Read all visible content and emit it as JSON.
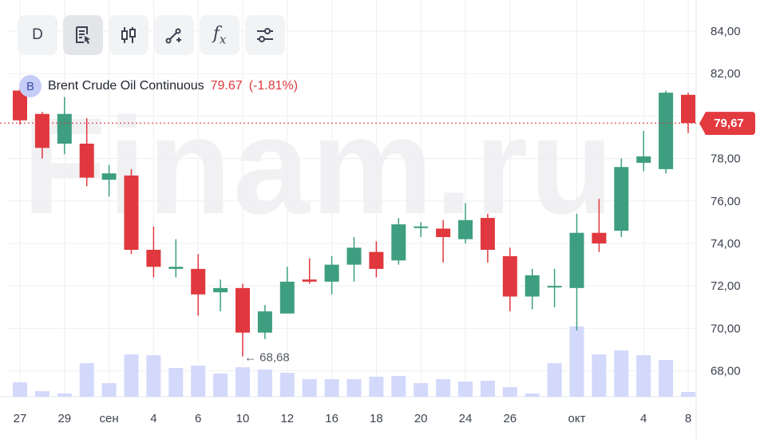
{
  "toolbar": {
    "interval_label": "D",
    "buttons": [
      {
        "name": "interval-button",
        "icon": "interval-text",
        "active": false
      },
      {
        "name": "indicators-button",
        "icon": "document-cursor-icon",
        "active": true
      },
      {
        "name": "chart-type-button",
        "icon": "candlestick-icon",
        "active": false
      },
      {
        "name": "drawing-tools-button",
        "icon": "line-tool-icon",
        "active": false
      },
      {
        "name": "functions-button",
        "icon": "fx-icon",
        "active": false
      },
      {
        "name": "settings-button",
        "icon": "sliders-icon",
        "active": false
      }
    ],
    "fx_label": "f",
    "fx_sub": "x"
  },
  "legend": {
    "badge": "B",
    "symbol": "Brent Crude Oil Continuous",
    "price": "79.67",
    "change": "(-1.81%)"
  },
  "watermark": "Finam.ru",
  "current_price_label": "79,67",
  "low_marker_label": "68,68",
  "colors": {
    "up": "#3d9e80",
    "down": "#e0383e",
    "volume": "#d3d9fb",
    "grid": "#eeeff2",
    "price_line": "#e0383e"
  },
  "chart_data": {
    "type": "candlestick",
    "title": "Brent Crude Oil Continuous",
    "ylim": [
      67.0,
      85.0
    ],
    "yticks": [
      "84,00",
      "82,00",
      "80,00",
      "78,00",
      "76,00",
      "74,00",
      "72,00",
      "70,00",
      "68,00"
    ],
    "ytick_values": [
      84,
      82,
      80,
      78,
      76,
      74,
      72,
      70,
      68
    ],
    "xticks": [
      {
        "label": "27",
        "index": 0
      },
      {
        "label": "29",
        "index": 2
      },
      {
        "label": "сен",
        "index": 4
      },
      {
        "label": "4",
        "index": 6
      },
      {
        "label": "6",
        "index": 8
      },
      {
        "label": "10",
        "index": 10
      },
      {
        "label": "12",
        "index": 12
      },
      {
        "label": "16",
        "index": 14
      },
      {
        "label": "18",
        "index": 16
      },
      {
        "label": "20",
        "index": 18
      },
      {
        "label": "24",
        "index": 20
      },
      {
        "label": "26",
        "index": 22
      },
      {
        "label": "окт",
        "index": 25
      },
      {
        "label": "4",
        "index": 28
      },
      {
        "label": "8",
        "index": 30
      }
    ],
    "candles": [
      {
        "o": 81.2,
        "h": 81.3,
        "l": 79.6,
        "c": 79.8
      },
      {
        "o": 80.1,
        "h": 80.2,
        "l": 78.0,
        "c": 78.5
      },
      {
        "o": 78.7,
        "h": 80.9,
        "l": 78.2,
        "c": 80.1
      },
      {
        "o": 78.7,
        "h": 79.9,
        "l": 76.7,
        "c": 77.1
      },
      {
        "o": 77.0,
        "h": 77.7,
        "l": 76.2,
        "c": 77.3
      },
      {
        "o": 77.2,
        "h": 77.5,
        "l": 73.5,
        "c": 73.7
      },
      {
        "o": 73.7,
        "h": 74.8,
        "l": 72.4,
        "c": 72.9
      },
      {
        "o": 72.8,
        "h": 74.2,
        "l": 72.4,
        "c": 72.9
      },
      {
        "o": 72.8,
        "h": 73.5,
        "l": 70.6,
        "c": 71.6
      },
      {
        "o": 71.7,
        "h": 72.3,
        "l": 70.8,
        "c": 71.9
      },
      {
        "o": 71.9,
        "h": 72.1,
        "l": 68.68,
        "c": 69.8
      },
      {
        "o": 69.8,
        "h": 71.1,
        "l": 69.5,
        "c": 70.8
      },
      {
        "o": 70.7,
        "h": 72.9,
        "l": 70.7,
        "c": 72.2
      },
      {
        "o": 72.3,
        "h": 73.3,
        "l": 72.1,
        "c": 72.2
      },
      {
        "o": 72.2,
        "h": 73.4,
        "l": 71.6,
        "c": 73.0
      },
      {
        "o": 73.0,
        "h": 74.3,
        "l": 72.2,
        "c": 73.8
      },
      {
        "o": 73.6,
        "h": 74.1,
        "l": 72.4,
        "c": 72.8
      },
      {
        "o": 73.2,
        "h": 75.2,
        "l": 73.0,
        "c": 74.9
      },
      {
        "o": 74.8,
        "h": 75.0,
        "l": 74.3,
        "c": 74.8
      },
      {
        "o": 74.7,
        "h": 75.1,
        "l": 73.1,
        "c": 74.3
      },
      {
        "o": 74.2,
        "h": 75.9,
        "l": 74.0,
        "c": 75.1
      },
      {
        "o": 75.2,
        "h": 75.4,
        "l": 73.1,
        "c": 73.7
      },
      {
        "o": 73.4,
        "h": 73.8,
        "l": 70.8,
        "c": 71.5
      },
      {
        "o": 71.5,
        "h": 72.8,
        "l": 70.9,
        "c": 72.5
      },
      {
        "o": 72.0,
        "h": 72.8,
        "l": 71.0,
        "c": 72.0
      },
      {
        "o": 71.9,
        "h": 75.4,
        "l": 69.9,
        "c": 74.5
      },
      {
        "o": 74.5,
        "h": 76.1,
        "l": 73.6,
        "c": 74.0
      },
      {
        "o": 74.6,
        "h": 78.0,
        "l": 74.3,
        "c": 77.6
      },
      {
        "o": 77.8,
        "h": 79.3,
        "l": 77.4,
        "c": 78.1
      },
      {
        "o": 77.5,
        "h": 81.2,
        "l": 77.3,
        "c": 81.1
      },
      {
        "o": 81.0,
        "h": 81.1,
        "l": 79.2,
        "c": 79.67
      }
    ],
    "volume": [
      18,
      7,
      4,
      42,
      17,
      53,
      52,
      36,
      39,
      29,
      37,
      34,
      30,
      22,
      22,
      22,
      25,
      26,
      17,
      22,
      19,
      20,
      12,
      4,
      42,
      88,
      53,
      58,
      52,
      46,
      6
    ],
    "volume_max": 100,
    "last_price": 79.67,
    "low_marker": {
      "index": 10,
      "value": 68.68
    }
  }
}
